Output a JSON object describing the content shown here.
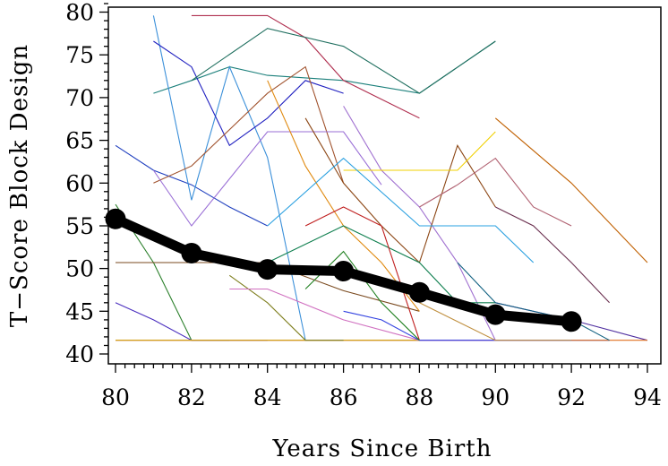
{
  "chart_data": {
    "type": "line",
    "title": "",
    "xlabel": "Years Since Birth",
    "ylabel": "T−Score Block Design",
    "xlim": [
      80,
      94
    ],
    "ylim": [
      40,
      81
    ],
    "xticks": [
      80,
      82,
      84,
      86,
      88,
      90,
      92,
      94
    ],
    "yticks": [
      40,
      45,
      50,
      55,
      60,
      65,
      70,
      75,
      80
    ],
    "grid": false,
    "legend": "none",
    "mean_series": {
      "color": "#000000",
      "x": [
        80,
        82,
        84,
        86,
        88,
        90,
        92
      ],
      "y": [
        55.8,
        51.8,
        49.9,
        49.7,
        47.2,
        44.6,
        43.8
      ]
    },
    "individual_series": [
      {
        "color": "#1f3fbf",
        "x": [
          80,
          81,
          82,
          83,
          84
        ],
        "y": [
          64.4,
          61.5,
          59.8,
          57.2,
          55.0
        ]
      },
      {
        "color": "#2a7f2a",
        "x": [
          80,
          81,
          82,
          83
        ],
        "y": [
          57.5,
          50.7,
          41.6,
          41.6
        ]
      },
      {
        "color": "#7a4a1f",
        "x": [
          80,
          82,
          84,
          86,
          88
        ],
        "y": [
          50.7,
          50.7,
          50.7,
          47.4,
          45.0
        ]
      },
      {
        "color": "#4b2fbf",
        "x": [
          80,
          81,
          82,
          83,
          84
        ],
        "y": [
          46.0,
          44.0,
          41.6,
          41.6,
          41.6
        ]
      },
      {
        "color": "#c23b8f",
        "x": [
          80,
          82,
          84,
          86,
          88,
          90,
          92
        ],
        "y": [
          41.6,
          41.6,
          41.6,
          41.6,
          41.6,
          41.6,
          41.6
        ]
      },
      {
        "color": "#d4a900",
        "x": [
          80,
          82,
          84,
          86,
          88
        ],
        "y": [
          41.6,
          41.6,
          41.6,
          41.6,
          41.6
        ]
      },
      {
        "color": "#1a7f7a",
        "x": [
          81,
          82,
          83,
          84,
          86,
          88,
          90
        ],
        "y": [
          70.5,
          72.0,
          73.6,
          72.6,
          72.0,
          70.5,
          76.6
        ]
      },
      {
        "color": "#3a8fd9",
        "x": [
          81,
          82,
          83,
          84,
          85
        ],
        "y": [
          79.6,
          58.0,
          73.6,
          63.0,
          41.6
        ]
      },
      {
        "color": "#2020c0",
        "x": [
          81,
          82,
          83,
          84,
          85,
          86
        ],
        "y": [
          76.6,
          73.6,
          64.4,
          67.6,
          72.0,
          70.5
        ]
      },
      {
        "color": "#a0522d",
        "x": [
          81,
          82,
          84,
          85,
          86
        ],
        "y": [
          60.0,
          62.0,
          70.5,
          73.6,
          60.0
        ]
      },
      {
        "color": "#9a6fd6",
        "x": [
          81,
          82,
          84,
          86,
          87
        ],
        "y": [
          61.5,
          55.0,
          66.0,
          66.0,
          59.8
        ]
      },
      {
        "color": "#b03050",
        "x": [
          82,
          84,
          85,
          86,
          88
        ],
        "y": [
          79.6,
          79.6,
          77.0,
          72.0,
          67.6
        ]
      },
      {
        "color": "#1f6f5f",
        "x": [
          82,
          84,
          86,
          88,
          90
        ],
        "y": [
          72.0,
          78.1,
          76.0,
          70.5,
          76.6
        ]
      },
      {
        "color": "#e08a10",
        "x": [
          84,
          85,
          86,
          87,
          88
        ],
        "y": [
          72.0,
          62.0,
          55.0,
          50.7,
          45.0
        ]
      },
      {
        "color": "#a070d0",
        "x": [
          86,
          87,
          88,
          89,
          90
        ],
        "y": [
          69.0,
          61.5,
          57.2,
          50.7,
          41.6
        ]
      },
      {
        "color": "#8b4513",
        "x": [
          85,
          86,
          87,
          88,
          89,
          90
        ],
        "y": [
          67.6,
          60.0,
          55.0,
          50.7,
          64.4,
          57.2
        ]
      },
      {
        "color": "#f0d000",
        "x": [
          86,
          87,
          88,
          89,
          90
        ],
        "y": [
          61.5,
          61.5,
          61.5,
          61.5,
          66.0
        ]
      },
      {
        "color": "#b06070",
        "x": [
          88,
          89,
          90,
          91,
          92
        ],
        "y": [
          57.2,
          59.8,
          62.9,
          57.2,
          55.0
        ]
      },
      {
        "color": "#c06000",
        "x": [
          90,
          92,
          94
        ],
        "y": [
          67.6,
          60.0,
          50.7
        ]
      },
      {
        "color": "#6a2f4f",
        "x": [
          90,
          91,
          92,
          93
        ],
        "y": [
          57.2,
          55.0,
          50.7,
          46.0
        ]
      },
      {
        "color": "#2aa0e0",
        "x": [
          84,
          86,
          88,
          90,
          91
        ],
        "y": [
          55.0,
          62.9,
          55.0,
          55.0,
          50.7
        ]
      },
      {
        "color": "#0f7f4f",
        "x": [
          84,
          86,
          88,
          89,
          90
        ],
        "y": [
          50.7,
          55.0,
          50.7,
          46.0,
          46.0
        ]
      },
      {
        "color": "#c02020",
        "x": [
          85,
          86,
          87,
          88
        ],
        "y": [
          55.0,
          57.2,
          55.0,
          41.6
        ]
      },
      {
        "color": "#7f7f1f",
        "x": [
          83,
          84,
          85,
          86
        ],
        "y": [
          49.2,
          46.0,
          41.6,
          41.6
        ]
      },
      {
        "color": "#d070c0",
        "x": [
          83,
          84,
          86,
          88
        ],
        "y": [
          47.6,
          47.6,
          44.0,
          41.6
        ]
      },
      {
        "color": "#3040e0",
        "x": [
          86,
          87,
          88,
          90,
          92,
          93
        ],
        "y": [
          45.0,
          44.0,
          41.6,
          41.6,
          41.6,
          41.6
        ]
      },
      {
        "color": "#208020",
        "x": [
          85,
          86,
          87,
          88
        ],
        "y": [
          47.6,
          52.0,
          46.0,
          41.6
        ]
      },
      {
        "color": "#5030a0",
        "x": [
          90,
          92,
          94
        ],
        "y": [
          46.0,
          44.0,
          41.6
        ]
      },
      {
        "color": "#c09040",
        "x": [
          88,
          90,
          92
        ],
        "y": [
          46.0,
          41.6,
          41.6
        ]
      },
      {
        "color": "#e07020",
        "x": [
          92,
          93,
          94
        ],
        "y": [
          41.6,
          41.6,
          41.6
        ]
      },
      {
        "color": "#106080",
        "x": [
          89,
          90,
          92,
          93
        ],
        "y": [
          50.7,
          46.0,
          44.0,
          41.6
        ]
      }
    ]
  }
}
